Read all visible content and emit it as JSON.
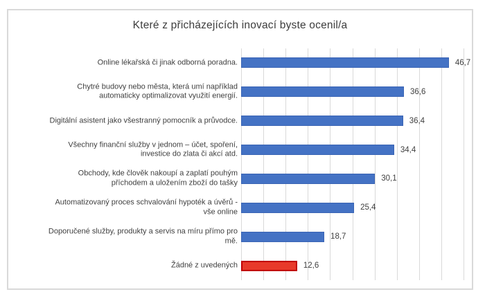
{
  "chart_data": {
    "type": "bar",
    "orientation": "horizontal",
    "title": "Které z přicházejících inovací byste ocenil/a",
    "categories": [
      "Online lékařská či jinak odborná poradna.",
      "Chytré budovy nebo města, která umí například automaticky optimalizovat využití energií.",
      "Digitální asistent jako všestranný pomocník a průvodce.",
      "Všechny finanční služby v jednom – účet, spoření, investice do zlata či akcí atd.",
      "Obchody, kde člověk nakoupí a zaplatí pouhým příchodem a uložením zboží do tašky",
      "Automatizovaný proces schvalování hypoték a úvěrů - vše online",
      "Doporučené služby, produkty a servis na míru přímo pro mě.",
      "Žádné z uvedených"
    ],
    "category_lines": [
      [
        "Online lékařská či jinak odborná poradna."
      ],
      [
        "Chytré budovy nebo města, která umí například",
        "automaticky optimalizovat využití energií."
      ],
      [
        "Digitální asistent jako všestranný pomocník a průvodce."
      ],
      [
        "Všechny finanční služby v jednom – účet, spoření,",
        "investice do zlata či akcí atd."
      ],
      [
        "Obchody, kde člověk nakoupí a zaplatí pouhým",
        "příchodem a uložením zboží do tašky"
      ],
      [
        "Automatizovaný proces schvalování hypoték a úvěrů -",
        "vše online"
      ],
      [
        "Doporučené služby, produkty a servis na míru přímo pro",
        "mě."
      ],
      [
        "Žádné z uvedených"
      ]
    ],
    "values": [
      46.7,
      36.6,
      36.4,
      34.4,
      30.1,
      25.4,
      18.7,
      12.6
    ],
    "value_labels": [
      "46,7",
      "36,6",
      "36,4",
      "34,4",
      "30,1",
      "25,4",
      "18,7",
      "12,6"
    ],
    "xlim": [
      0,
      50
    ],
    "gridline_step": 5,
    "grid": "vertical",
    "legend": "none",
    "bar_color": "#4472C4",
    "bar_border_color": "#3A64B4",
    "highlight_index": 7,
    "highlight_color": "#E83A2A",
    "highlight_border_color": "#C00000",
    "gridline_color": "#D9D9D9",
    "frame_border_color": "#D9D9D9",
    "text_color": "#3F3F3F"
  }
}
